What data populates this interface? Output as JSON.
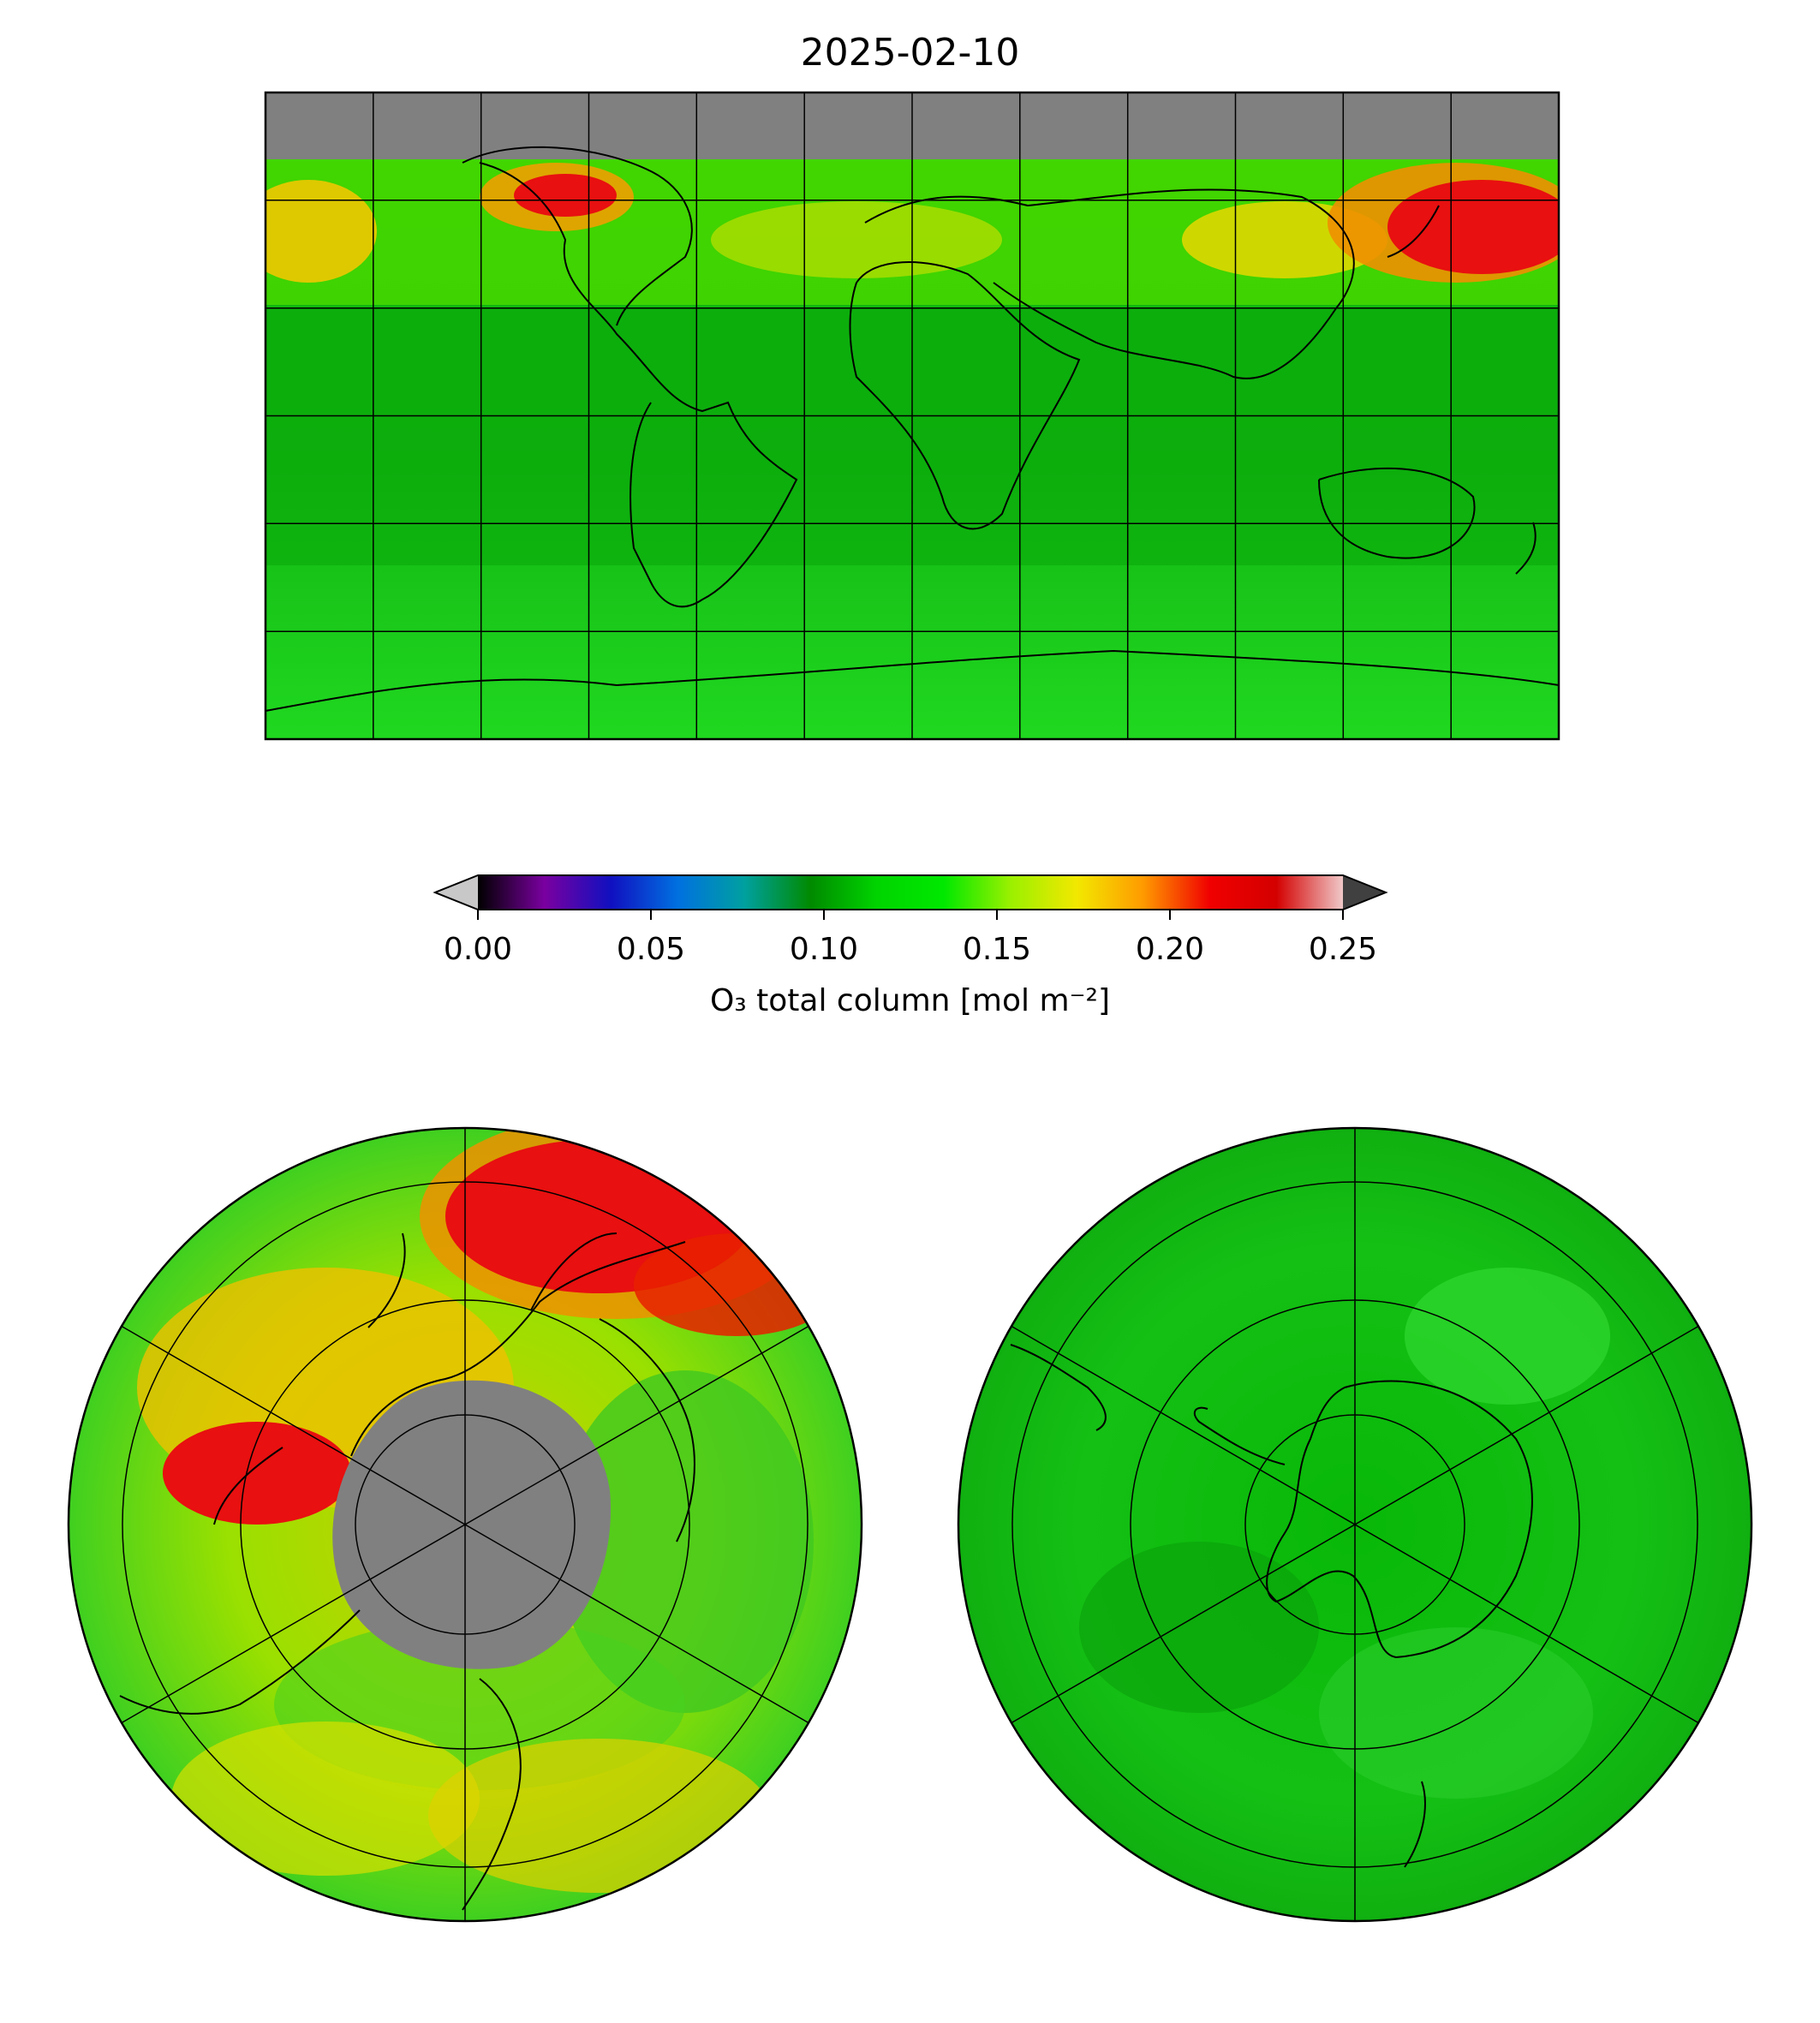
{
  "title": "2025-02-10",
  "colorbar": {
    "label": "O₃ total column [mol m⁻²]",
    "ticks": [
      "0.00",
      "0.05",
      "0.10",
      "0.15",
      "0.20",
      "0.25"
    ],
    "min": 0.0,
    "max": 0.25,
    "stops": [
      "#000000",
      "#7a00a0",
      "#1010c0",
      "#0070e0",
      "#00a0a0",
      "#008a00",
      "#00d400",
      "#00e800",
      "#9af000",
      "#f2e800",
      "#ff9a00",
      "#f00000",
      "#d40000",
      "#f0c8c8"
    ],
    "under_color": "#c8c8c8",
    "over_color": "#404040"
  },
  "colors": {
    "missing": "#808080",
    "background_green": "#1ec81e",
    "high_red": "#e81010",
    "mid_yellow": "#e0e000",
    "coastline": "#000000"
  },
  "maps": {
    "global": {
      "projection": "plate-carree",
      "gridlines": "every 30 degrees"
    },
    "north": {
      "projection": "north-polar-stereographic",
      "gridlines": "radial meridians and latitude circles"
    },
    "south": {
      "projection": "south-polar-stereographic",
      "gridlines": "radial meridians and latitude circles"
    }
  }
}
